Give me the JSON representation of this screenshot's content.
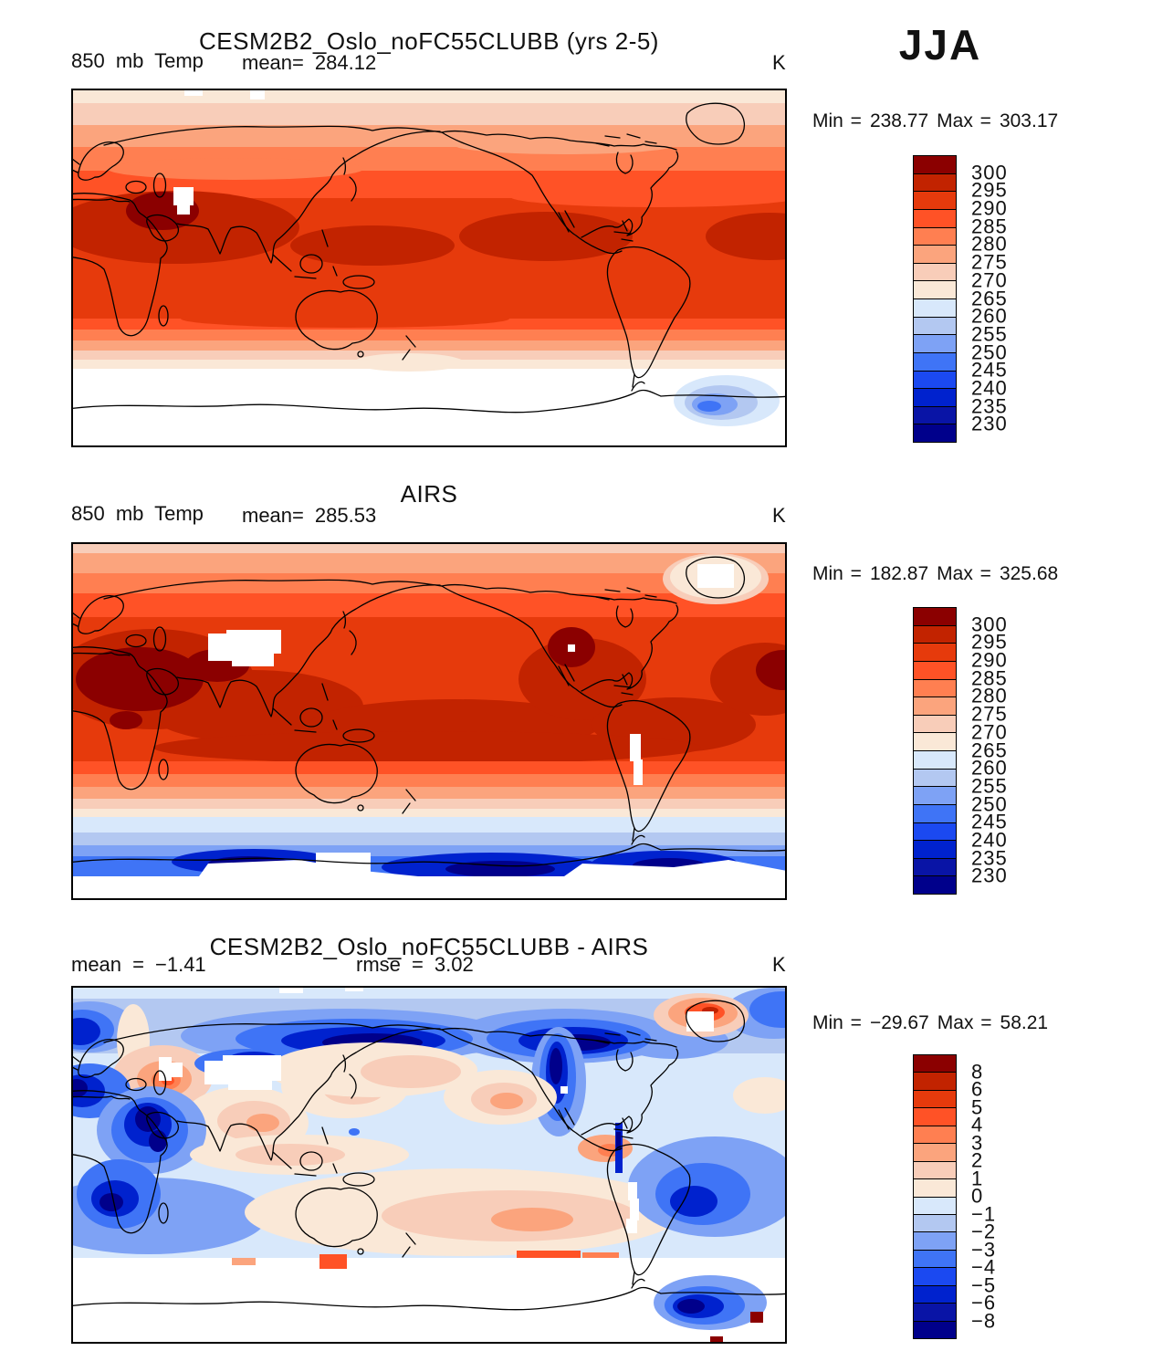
{
  "season": "JJA",
  "palette": [
    "#8B0000",
    "#C22300",
    "#E63A0C",
    "#FF5226",
    "#FF7F51",
    "#FBA47D",
    "#F8CDB9",
    "#FAE8D7",
    "#D8E8FB",
    "#B3C8F1",
    "#7EA2F5",
    "#3F74F6",
    "#1B49F1",
    "#0022CE",
    "#0914A6",
    "#00008B"
  ],
  "panels": [
    {
      "title": "CESM2B2_Oslo_noFC55CLUBB (yrs 2-5)",
      "field": "850 mb Temp",
      "mean_label": "mean=",
      "mean_value": "284.12",
      "unit": "K",
      "min_label": "Min  =",
      "min_value": "238.77",
      "max_label": "Max  =",
      "max_value": "303.17"
    },
    {
      "title": "AIRS",
      "field": "850 mb Temp",
      "mean_label": "mean=",
      "mean_value": "285.53",
      "unit": "K",
      "min_label": "Min  =",
      "min_value": "182.87",
      "max_label": "Max  =",
      "max_value": "325.68"
    },
    {
      "title": "CESM2B2_Oslo_noFC55CLUBB - AIRS",
      "mean_label": "mean  =",
      "mean_value": "−1.41",
      "rmse_label": "rmse  =",
      "rmse_value": "3.02",
      "unit": "K",
      "min_label": "Min  =",
      "min_value": "−29.67",
      "max_label": "Max  =",
      "max_value": "58.21"
    }
  ],
  "colorbars": [
    {
      "ticks": [
        "300",
        "295",
        "290",
        "285",
        "280",
        "275",
        "270",
        "265",
        "260",
        "255",
        "250",
        "245",
        "240",
        "235",
        "230"
      ]
    },
    {
      "ticks": [
        "300",
        "295",
        "290",
        "285",
        "280",
        "275",
        "270",
        "265",
        "260",
        "255",
        "250",
        "245",
        "240",
        "235",
        "230"
      ]
    },
    {
      "ticks": [
        "8",
        "6",
        "5",
        "4",
        "3",
        "2",
        "1",
        "0",
        "−1",
        "−2",
        "−3",
        "−4",
        "−5",
        "−6",
        "−8"
      ]
    }
  ],
  "chart_data": [
    {
      "type": "heatmap",
      "title": "CESM2B2_Oslo_noFC55CLUBB (yrs 2-5)",
      "variable": "850 mb Temp",
      "season": "JJA",
      "units": "K",
      "mean": 284.12,
      "min": 238.77,
      "max": 303.17,
      "projection": "global equirectangular, lon 0-360",
      "contour_levels": [
        230,
        235,
        240,
        245,
        250,
        255,
        260,
        265,
        270,
        275,
        280,
        285,
        290,
        295,
        300
      ],
      "legend_position": "right",
      "notes": "Warm (dark red >300K) maximum over Middle East/North Africa; values decrease poleward; data masked white south of ~55S; small cold (blue ~255K) patch over East Antarctica"
    },
    {
      "type": "heatmap",
      "title": "AIRS",
      "variable": "850 mb Temp",
      "season": "JJA",
      "units": "K",
      "mean": 285.53,
      "min": 182.87,
      "max": 325.68,
      "projection": "global equirectangular, lon 0-360",
      "contour_levels": [
        230,
        235,
        240,
        245,
        250,
        255,
        260,
        265,
        270,
        275,
        280,
        285,
        290,
        295,
        300
      ],
      "legend_position": "right",
      "notes": "Dark red >300K over N Africa/Middle East/India and Mexico; Tibet, Andes and Greenland interior masked white; deep blue <230K ring along Antarctic coast"
    },
    {
      "type": "heatmap",
      "title": "CESM2B2_Oslo_noFC55CLUBB - AIRS",
      "variable": "850 mb Temp difference",
      "season": "JJA",
      "units": "K",
      "mean": -1.41,
      "rmse": 3.02,
      "min": -29.67,
      "max": 58.21,
      "projection": "global equirectangular, lon 0-360",
      "contour_levels": [
        -8,
        -6,
        -5,
        -4,
        -3,
        -2,
        -1,
        0,
        1,
        2,
        3,
        4,
        5,
        6,
        8
      ],
      "legend_position": "right",
      "notes": "Mostly weak negative (light blue); strong cold biases (dark blue < -8) over high northern latitudes, western North America, Middle East/Africa and Southern Ocean; warm biases (orange) over E Europe, NE Pacific, S Pacific and Greenland edge"
    }
  ]
}
